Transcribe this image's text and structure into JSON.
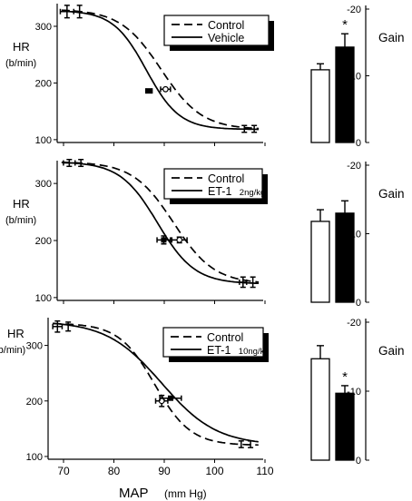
{
  "figure": {
    "xlabel_main": "MAP",
    "xlabel_unit": "(mm Hg)",
    "x_ticks": [
      70,
      80,
      90,
      100,
      110
    ]
  },
  "chart_data": [
    {
      "type": "line",
      "panel": "top-left",
      "ylabel": "HR",
      "ylabel_unit": "(b/min)",
      "xlim": [
        65,
        111
      ],
      "ylim": [
        95,
        340
      ],
      "y_ticks": [
        100,
        200,
        300
      ],
      "legend": {
        "placement": "top-right",
        "boxed": true,
        "shadow": true,
        "entries": [
          {
            "label": "Control",
            "style": "dashed"
          },
          {
            "label": "Vehicle",
            "style": "solid"
          }
        ]
      },
      "series": [
        {
          "name": "Control",
          "style": "dashed",
          "top": 330,
          "bottom": 118,
          "midpoint": 88.2,
          "slope": 0.22
        },
        {
          "name": "Vehicle",
          "style": "solid",
          "top": 328,
          "bottom": 118,
          "midpoint": 84.9,
          "slope": 0.27
        }
      ],
      "points": [
        {
          "x": 67.2,
          "y": 326,
          "xerr": 1.5,
          "yerr": 11,
          "marker": "none"
        },
        {
          "x": 70.0,
          "y": 326,
          "xerr": 0,
          "yerr": 11,
          "marker": "none"
        },
        {
          "x": 85.5,
          "y": 186,
          "xerr": 0.7,
          "yerr": 0,
          "marker": "filled"
        },
        {
          "x": 89.2,
          "y": 189,
          "xerr": 1.1,
          "yerr": 0,
          "marker": "open"
        },
        {
          "x": 106.8,
          "y": 119,
          "xerr": 0,
          "yerr": 6,
          "marker": "none"
        },
        {
          "x": 109.0,
          "y": 119,
          "xerr": 0,
          "yerr": 6,
          "marker": "none"
        }
      ]
    },
    {
      "type": "bar",
      "panel": "top-right",
      "ylabel": "Gain",
      "y_ticks": [
        0,
        -10,
        -20
      ],
      "ylim": [
        0,
        -20.5
      ],
      "bars": [
        {
          "value": -10.9,
          "err": 0.9,
          "fill": "open"
        },
        {
          "value": -14.3,
          "err": 2.0,
          "fill": "filled"
        }
      ],
      "annotation": "*"
    },
    {
      "type": "line",
      "panel": "middle-left",
      "ylabel": "HR",
      "ylabel_unit": "(b/min)",
      "xlim": [
        65,
        111
      ],
      "ylim": [
        95,
        340
      ],
      "y_ticks": [
        100,
        200,
        300
      ],
      "legend": {
        "placement": "top-right",
        "boxed": true,
        "shadow": true,
        "entries": [
          {
            "label": "Control",
            "style": "dashed"
          },
          {
            "label": "ET-1",
            "dose": "2ng/kg",
            "style": "solid"
          }
        ]
      },
      "series": [
        {
          "name": "Control",
          "style": "dashed",
          "top": 338,
          "bottom": 124,
          "midpoint": 91.0,
          "slope": 0.22
        },
        {
          "name": "ET-1 2ng/kg",
          "style": "solid",
          "top": 338,
          "bottom": 124,
          "midpoint": 87.4,
          "slope": 0.24
        }
      ],
      "points": [
        {
          "x": 67.7,
          "y": 336,
          "xerr": 1.3,
          "yerr": 6,
          "marker": "none"
        },
        {
          "x": 70.3,
          "y": 336,
          "xerr": 0,
          "yerr": 6,
          "marker": "none"
        },
        {
          "x": 88.8,
          "y": 201,
          "xerr": 1.5,
          "yerr": 7,
          "marker": "filled"
        },
        {
          "x": 92.3,
          "y": 201,
          "xerr": 1.7,
          "yerr": 5,
          "marker": "open"
        },
        {
          "x": 106.5,
          "y": 127,
          "xerr": 0.8,
          "yerr": 9,
          "marker": "none"
        },
        {
          "x": 108.7,
          "y": 127,
          "xerr": 0,
          "yerr": 9,
          "marker": "none"
        }
      ]
    },
    {
      "type": "bar",
      "panel": "middle-right",
      "ylabel": "Gain",
      "y_ticks": [
        0,
        -10,
        -20
      ],
      "ylim": [
        0,
        -20.5
      ],
      "bars": [
        {
          "value": -11.8,
          "err": 1.7,
          "fill": "open"
        },
        {
          "value": -13.0,
          "err": 1.8,
          "fill": "filled"
        }
      ]
    },
    {
      "type": "line",
      "panel": "bottom-left",
      "ylabel": "HR",
      "ylabel_unit": "(b/min)",
      "xlim": [
        65,
        111
      ],
      "ylim": [
        95,
        350
      ],
      "y_ticks": [
        100,
        200,
        300
      ],
      "legend": {
        "placement": "top-right",
        "boxed": true,
        "shadow": true,
        "entries": [
          {
            "label": "Control",
            "style": "dashed"
          },
          {
            "label": "ET-1",
            "dose": "10ng/kg",
            "style": "solid"
          }
        ]
      },
      "series": [
        {
          "name": "Control",
          "style": "dashed",
          "top": 340,
          "bottom": 120,
          "midpoint": 87.8,
          "slope": 0.26
        },
        {
          "name": "ET-1 10ng/kg",
          "style": "solid",
          "top": 344,
          "bottom": 120,
          "midpoint": 89.3,
          "slope": 0.17
        }
      ],
      "points": [
        {
          "x": 67.0,
          "y": 334,
          "xerr": 1.0,
          "yerr": 10,
          "marker": "none"
        },
        {
          "x": 69.3,
          "y": 334,
          "xerr": 0,
          "yerr": 8,
          "marker": "none"
        },
        {
          "x": 89.3,
          "y": 200,
          "xerr": 1.3,
          "yerr": 10,
          "marker": "open"
        },
        {
          "x": 91.2,
          "y": 205,
          "xerr": 2.3,
          "yerr": 0,
          "marker": "filled"
        },
        {
          "x": 106.3,
          "y": 122,
          "xerr": 0,
          "yerr": 6,
          "marker": "none"
        },
        {
          "x": 108.3,
          "y": 122,
          "xerr": 0,
          "yerr": 6,
          "marker": "none"
        }
      ]
    },
    {
      "type": "bar",
      "panel": "bottom-right",
      "ylabel": "Gain",
      "y_ticks": [
        0,
        -10,
        -20
      ],
      "ylim": [
        0,
        -20.5
      ],
      "bars": [
        {
          "value": -14.7,
          "err": 1.9,
          "fill": "open"
        },
        {
          "value": -9.7,
          "err": 1.1,
          "fill": "filled"
        }
      ],
      "annotation": "*"
    }
  ]
}
